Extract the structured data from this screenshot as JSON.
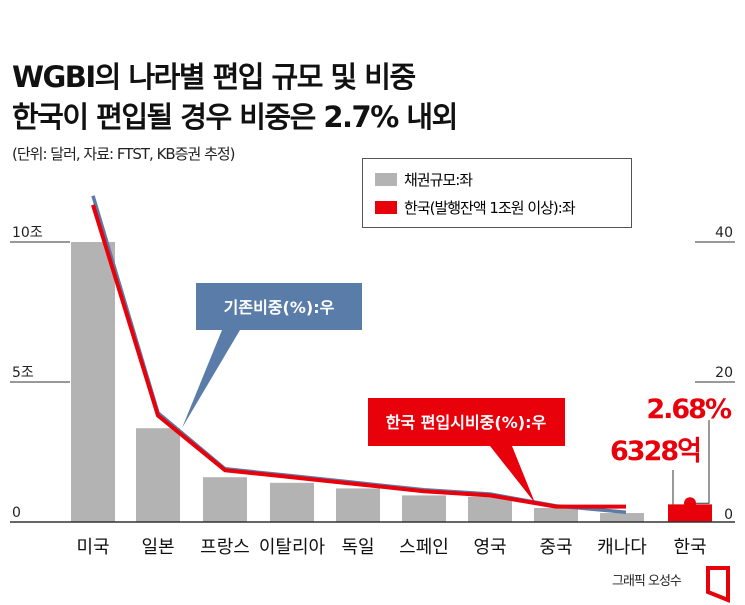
{
  "chart_data": {
    "type": "bar",
    "title": "WGBI의 나라별 편입 규모 및 비중",
    "subtitle": "한국이 편입될 경우 비중은 2.7% 내외",
    "note": "(단위: 달러, 자료: FTST, KB증권 추정)",
    "categories": [
      "미국",
      "일본",
      "프랑스",
      "이탈리아",
      "독일",
      "스페인",
      "영국",
      "중국",
      "캐나다",
      "한국"
    ],
    "left_axis": {
      "ticks": [
        {
          "value": 0,
          "label": "0"
        },
        {
          "value": 5,
          "label": "5조"
        },
        {
          "value": 10,
          "label": "10조"
        }
      ],
      "ylim": [
        0,
        10
      ]
    },
    "right_axis": {
      "ticks": [
        {
          "value": 0,
          "label": "0"
        },
        {
          "value": 20,
          "label": "20"
        },
        {
          "value": 40,
          "label": "40"
        }
      ],
      "ylim": [
        0,
        40
      ]
    },
    "series": [
      {
        "name": "채권규모:좌",
        "type": "bar",
        "axis": "left",
        "color": "#b3b3b3",
        "values": [
          10.0,
          3.35,
          1.6,
          1.4,
          1.2,
          0.95,
          0.9,
          0.5,
          0.32,
          null
        ]
      },
      {
        "name": "한국(발행잔액 1조원 이상):좌",
        "type": "bar",
        "axis": "left",
        "color": "#e8000b",
        "values": [
          null,
          null,
          null,
          null,
          null,
          null,
          null,
          null,
          null,
          0.63
        ]
      },
      {
        "name": "기존비중(%):우",
        "type": "line",
        "axis": "right",
        "color": "#5a7ca8",
        "values": [
          46.6,
          15.6,
          7.6,
          6.6,
          5.6,
          4.6,
          4.0,
          2.3,
          1.4,
          null
        ]
      },
      {
        "name": "한국 편입시비중(%):우",
        "type": "line",
        "axis": "right",
        "color": "#e8000b",
        "values": [
          45.3,
          15.2,
          7.4,
          6.4,
          5.4,
          4.4,
          3.8,
          2.2,
          2.2,
          null
        ]
      },
      {
        "name": "한국 비중",
        "type": "point",
        "axis": "right",
        "color": "#e8000b",
        "values": [
          null,
          null,
          null,
          null,
          null,
          null,
          null,
          null,
          null,
          2.68
        ]
      }
    ],
    "annotations": {
      "korea_share": "2.68%",
      "korea_size": "6328억",
      "existing_callout": "기존비중(%):우",
      "korea_callout": "한국 편입시비중(%):우"
    },
    "grid": false,
    "legend_placement": "top-right"
  },
  "credit": "그래픽 오성수"
}
